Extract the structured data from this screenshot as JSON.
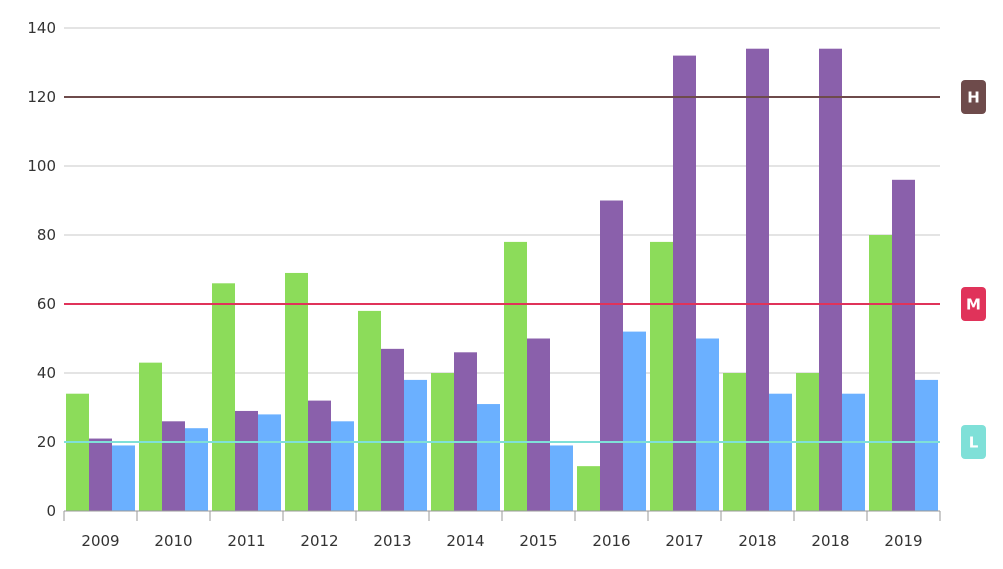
{
  "chart_data": {
    "type": "bar",
    "title": "",
    "xlabel": "",
    "ylabel": "",
    "categories": [
      "2009",
      "2010",
      "2011",
      "2012",
      "2013",
      "2014",
      "2015",
      "2016",
      "2017",
      "2018",
      "2018",
      "2019"
    ],
    "series": [
      {
        "color": "#8cdc5a",
        "values": [
          34,
          43,
          66,
          69,
          58,
          40,
          78,
          13,
          78,
          40,
          40,
          80
        ]
      },
      {
        "color": "#8a60ab",
        "values": [
          21,
          26,
          29,
          32,
          47,
          46,
          50,
          90,
          132,
          134,
          134,
          96
        ]
      },
      {
        "color": "#6bb0ff",
        "values": [
          19,
          24,
          28,
          26,
          38,
          31,
          19,
          52,
          50,
          34,
          34,
          38
        ]
      }
    ],
    "ylim": [
      0,
      140
    ],
    "yticks": [
      0,
      20,
      40,
      60,
      80,
      100,
      120,
      140
    ],
    "grid": true,
    "legend": "none",
    "reference_lines": [
      {
        "label": "H",
        "value": 120,
        "color": "#6e4b4b"
      },
      {
        "label": "M",
        "value": 60,
        "color": "#e0335a"
      },
      {
        "label": "L",
        "value": 20,
        "color": "#7fe0d8"
      }
    ]
  }
}
